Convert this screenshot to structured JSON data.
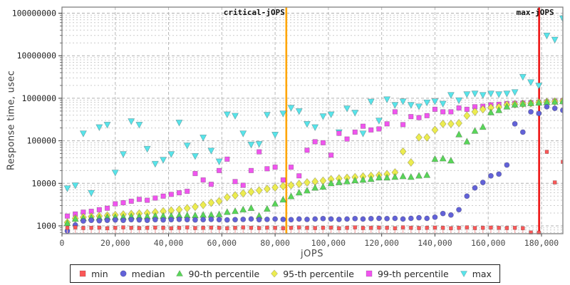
{
  "chart_data": {
    "type": "scatter",
    "title": "",
    "xlabel": "jOPS",
    "ylabel": "Response time, usec",
    "y_scale": "log",
    "grid": true,
    "legend_position": "bottom-center",
    "xlim": [
      0,
      188000
    ],
    "ylim": [
      650,
      140000000
    ],
    "x_tick_values": [
      0,
      20000,
      40000,
      60000,
      80000,
      100000,
      120000,
      140000,
      160000,
      180000
    ],
    "x_tick_labels": [
      "0",
      "20,000",
      "40,000",
      "60,000",
      "80,000",
      "100,000",
      "120,000",
      "140,000",
      "160,000",
      "180,000"
    ],
    "y_tick_values": [
      1000,
      10000,
      100000,
      1000000,
      10000000,
      100000000
    ],
    "y_tick_labels": [
      "1000",
      "10000",
      "100000",
      "1000000",
      "10000000",
      "100000000"
    ],
    "reference_lines": [
      {
        "key": "critical",
        "label": "critical-jOPS",
        "x": 84200,
        "color": "#ffa500"
      },
      {
        "key": "max",
        "label": "max-jOPS",
        "x": 179100,
        "color": "#ee1313"
      }
    ],
    "x": [
      2000,
      5000,
      8000,
      11000,
      14000,
      17000,
      20000,
      23000,
      26000,
      29000,
      32000,
      35000,
      38000,
      41000,
      44000,
      47000,
      50000,
      53000,
      56000,
      59000,
      62000,
      65000,
      68000,
      71000,
      74000,
      77000,
      80000,
      83000,
      86000,
      89000,
      92000,
      95000,
      98000,
      101000,
      104000,
      107000,
      110000,
      113000,
      116000,
      119000,
      122000,
      125000,
      128000,
      131000,
      134000,
      137000,
      140000,
      143000,
      146000,
      149000,
      152000,
      155000,
      158000,
      161000,
      164000,
      167000,
      170000,
      173000,
      176000,
      179000,
      182000,
      185000,
      188000
    ],
    "series": [
      {
        "key": "min",
        "name": "min",
        "marker": "square",
        "color": "#fa5858",
        "stem_color": "#f8a8a8",
        "stems": true,
        "size": 5,
        "values": [
          900,
          920,
          890,
          900,
          910,
          880,
          900,
          920,
          900,
          890,
          900,
          910,
          900,
          880,
          900,
          920,
          890,
          900,
          910,
          900,
          880,
          900,
          920,
          900,
          890,
          910,
          900,
          880,
          900,
          920,
          900,
          890,
          900,
          910,
          880,
          900,
          920,
          890,
          900,
          910,
          900,
          880,
          920,
          900,
          890,
          900,
          910,
          900,
          880,
          900,
          920,
          890,
          900,
          910,
          900,
          890,
          900,
          880,
          700,
          690,
          55000,
          10500,
          32000
        ]
      },
      {
        "key": "median",
        "name": "median",
        "marker": "circle",
        "color": "#6262d8",
        "size": 7.2,
        "values": [
          760,
          1050,
          1300,
          1350,
          1320,
          1350,
          1380,
          1350,
          1400,
          1380,
          1350,
          1400,
          1380,
          1400,
          1420,
          1400,
          1380,
          1400,
          1420,
          1400,
          1380,
          1400,
          1420,
          1450,
          1400,
          1420,
          1450,
          1420,
          1400,
          1450,
          1420,
          1450,
          1480,
          1450,
          1420,
          1450,
          1480,
          1450,
          1480,
          1500,
          1480,
          1500,
          1450,
          1500,
          1550,
          1500,
          1600,
          1950,
          1800,
          2400,
          5000,
          7800,
          10500,
          15000,
          16500,
          27000,
          250000,
          160000,
          480000,
          440000,
          630000,
          580000,
          520000
        ]
      },
      {
        "key": "p90",
        "name": "90-th percentile",
        "marker": "triangle-up",
        "color": "#59d659",
        "size": 9,
        "values": [
          1150,
          1450,
          1500,
          1550,
          1550,
          1600,
          1600,
          1600,
          1650,
          1650,
          1650,
          1700,
          1700,
          1700,
          1750,
          1750,
          1750,
          1800,
          1800,
          1850,
          2100,
          2200,
          2400,
          2600,
          1700,
          2500,
          3300,
          4100,
          4900,
          6000,
          6700,
          7800,
          8200,
          9900,
          10500,
          11000,
          11600,
          12000,
          12500,
          13500,
          13500,
          14000,
          14500,
          14000,
          15000,
          15500,
          37000,
          38000,
          34000,
          140000,
          95000,
          170000,
          210000,
          460000,
          520000,
          630000,
          700000,
          730000,
          760000,
          780000,
          800000,
          820000,
          840000
        ]
      },
      {
        "key": "p95",
        "name": "95-th percentile",
        "marker": "diamond",
        "color": "#ecec50",
        "size": 9,
        "values": [
          1200,
          1500,
          1600,
          1650,
          1700,
          1750,
          1800,
          1850,
          1900,
          1950,
          2000,
          2100,
          2200,
          2300,
          2400,
          2600,
          2800,
          3100,
          3500,
          3800,
          4700,
          5200,
          5800,
          6300,
          6800,
          7400,
          8000,
          8600,
          9000,
          9700,
          10500,
          11000,
          11500,
          12500,
          13000,
          13500,
          14000,
          14500,
          15000,
          15500,
          16500,
          18000,
          56000,
          31000,
          120000,
          120000,
          180000,
          250000,
          250000,
          260000,
          390000,
          480000,
          550000,
          600000,
          620000,
          700000,
          720000,
          740000,
          760000,
          800000,
          820000,
          840000,
          860000
        ]
      },
      {
        "key": "p99",
        "name": "99-th percentile",
        "marker": "square",
        "color": "#f055ee",
        "size": 6.5,
        "values": [
          1700,
          1900,
          2100,
          2200,
          2400,
          2600,
          3300,
          3500,
          3800,
          4200,
          4000,
          4500,
          5000,
          5500,
          6000,
          6500,
          17000,
          12000,
          9500,
          20000,
          37000,
          11000,
          9000,
          20000,
          55000,
          22000,
          24000,
          12000,
          24000,
          15000,
          60000,
          95000,
          90000,
          46000,
          150000,
          110000,
          160000,
          220000,
          180000,
          190000,
          250000,
          480000,
          240000,
          370000,
          350000,
          390000,
          550000,
          480000,
          480000,
          590000,
          550000,
          630000,
          650000,
          700000,
          720000,
          750000,
          760000,
          770000,
          780000,
          800000,
          820000,
          850000,
          870000
        ]
      },
      {
        "key": "max",
        "name": "max",
        "marker": "triangle-down",
        "color": "#58e4ea",
        "size": 9,
        "values": [
          7700,
          9000,
          150000,
          6000,
          210000,
          240000,
          18000,
          49000,
          290000,
          240000,
          65000,
          29000,
          36000,
          49000,
          270000,
          78000,
          44000,
          120000,
          59000,
          33000,
          420000,
          390000,
          150000,
          82000,
          85000,
          410000,
          140000,
          440000,
          600000,
          500000,
          250000,
          210000,
          380000,
          420000,
          160000,
          580000,
          460000,
          150000,
          840000,
          300000,
          950000,
          700000,
          850000,
          700000,
          650000,
          800000,
          850000,
          750000,
          1200000,
          900000,
          1250000,
          1300000,
          1200000,
          1300000,
          1250000,
          1300000,
          1400000,
          3200000,
          2400000,
          2000000,
          30000000,
          24000000,
          76000000
        ]
      }
    ]
  }
}
